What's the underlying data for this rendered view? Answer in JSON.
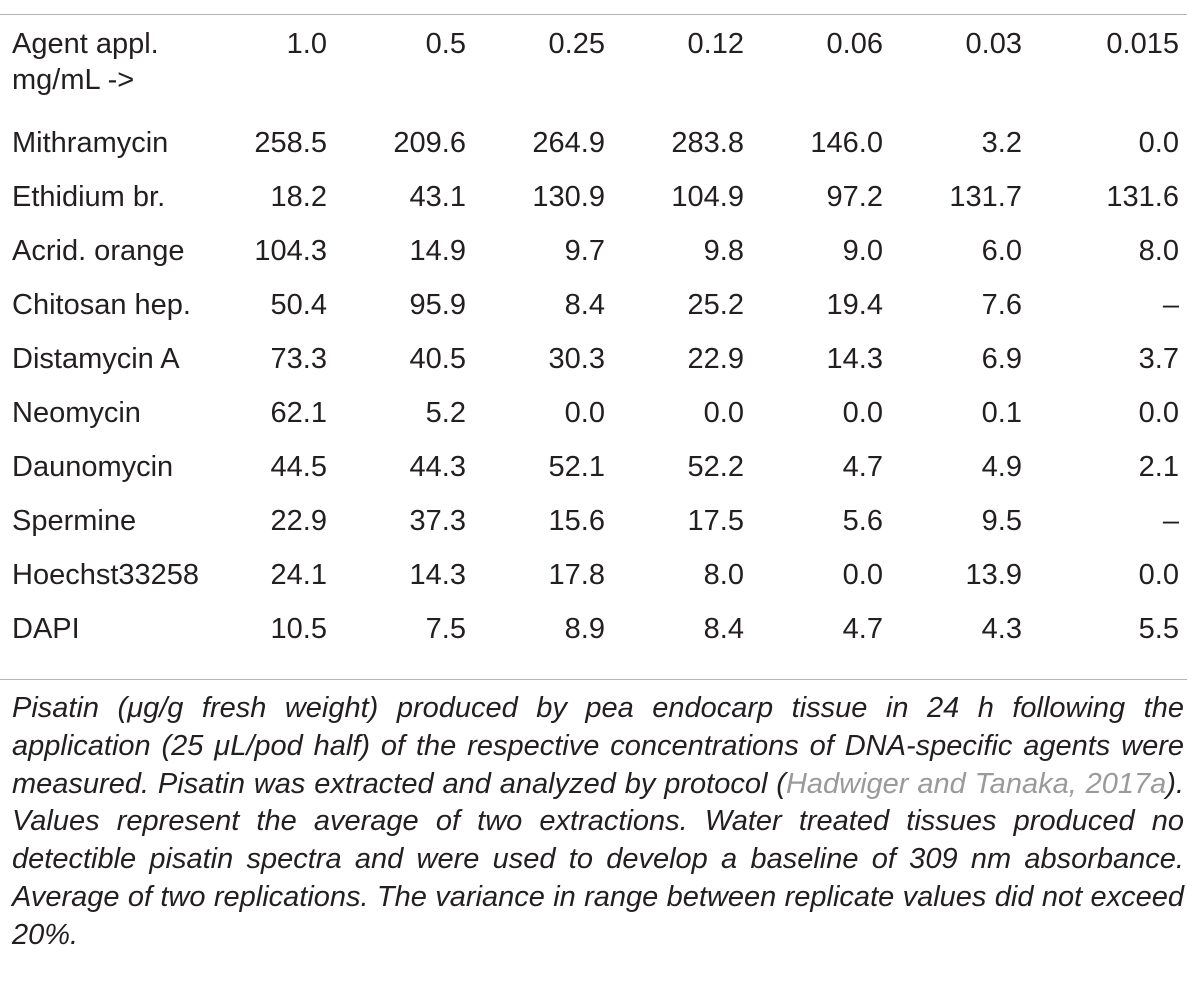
{
  "table": {
    "header_label": "Agent appl. mg/mL ->",
    "columns": [
      "1.0",
      "0.5",
      "0.25",
      "0.12",
      "0.06",
      "0.03",
      "0.015"
    ],
    "rows": [
      {
        "agent": "Mithramycin",
        "values": [
          "258.5",
          "209.6",
          "264.9",
          "283.8",
          "146.0",
          "3.2",
          "0.0"
        ]
      },
      {
        "agent": "Ethidium br.",
        "values": [
          "18.2",
          "43.1",
          "130.9",
          "104.9",
          "97.2",
          "131.7",
          "131.6"
        ]
      },
      {
        "agent": "Acrid. orange",
        "values": [
          "104.3",
          "14.9",
          "9.7",
          "9.8",
          "9.0",
          "6.0",
          "8.0"
        ]
      },
      {
        "agent": "Chitosan hep.",
        "values": [
          "50.4",
          "95.9",
          "8.4",
          "25.2",
          "19.4",
          "7.6",
          "–"
        ]
      },
      {
        "agent": "Distamycin A",
        "values": [
          "73.3",
          "40.5",
          "30.3",
          "22.9",
          "14.3",
          "6.9",
          "3.7"
        ]
      },
      {
        "agent": "Neomycin",
        "values": [
          "62.1",
          "5.2",
          "0.0",
          "0.0",
          "0.0",
          "0.1",
          "0.0"
        ]
      },
      {
        "agent": "Daunomycin",
        "values": [
          "44.5",
          "44.3",
          "52.1",
          "52.2",
          "4.7",
          "4.9",
          "2.1"
        ]
      },
      {
        "agent": "Spermine",
        "values": [
          "22.9",
          "37.3",
          "15.6",
          "17.5",
          "5.6",
          "9.5",
          "–"
        ]
      },
      {
        "agent": "Hoechst33258",
        "values": [
          "24.1",
          "14.3",
          "17.8",
          "8.0",
          "0.0",
          "13.9",
          "0.0"
        ]
      },
      {
        "agent": "DAPI",
        "values": [
          "10.5",
          "7.5",
          "8.9",
          "8.4",
          "4.7",
          "4.3",
          "5.5"
        ]
      }
    ]
  },
  "caption": {
    "text_before": "Pisatin (μg/g fresh weight) produced by pea endocarp tissue in 24 h following the application (25 μL/pod half) of the respective concentrations of DNA-specific agents were measured. Pisatin was extracted and analyzed by protocol (",
    "citation": "Hadwiger and Tanaka, 2017a",
    "text_after": "). Values represent the average of two extractions. Water treated tissues produced no detectible pisatin spectra and were used to develop a baseline of 309 nm absorbance. Average of two replications. The variance in range between replicate values did not exceed 20%."
  },
  "colors": {
    "text": "#231f20",
    "rule": "#b5b5b5",
    "citation_link": "#9a9a9a"
  }
}
